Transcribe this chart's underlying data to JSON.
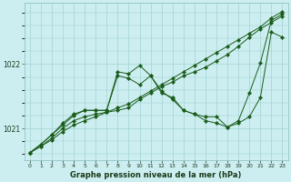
{
  "xlabel": "Graphe pression niveau de la mer (hPa)",
  "bg_color": "#cceef0",
  "grid_color": "#99cccc",
  "line_color": "#1a5c1a",
  "x": [
    0,
    1,
    2,
    3,
    4,
    5,
    6,
    7,
    8,
    9,
    10,
    11,
    12,
    13,
    14,
    15,
    16,
    17,
    18,
    19,
    20,
    21,
    22,
    23
  ],
  "series1": [
    1020.62,
    1020.72,
    1020.82,
    1020.95,
    1021.05,
    1021.12,
    1021.18,
    1021.25,
    1021.32,
    1021.38,
    1021.48,
    1021.58,
    1021.68,
    1021.78,
    1021.88,
    1021.98,
    1022.08,
    1022.18,
    1022.28,
    1022.38,
    1022.48,
    1022.58,
    1022.72,
    1022.82
  ],
  "series2": [
    1020.62,
    1020.72,
    1020.85,
    1021.0,
    1021.12,
    1021.18,
    1021.22,
    1021.25,
    1021.28,
    1021.32,
    1021.45,
    1021.55,
    1021.65,
    1021.72,
    1021.82,
    1021.88,
    1021.95,
    1022.05,
    1022.15,
    1022.28,
    1022.42,
    1022.55,
    1022.65,
    1022.75
  ],
  "series3": [
    1020.62,
    1020.75,
    1020.9,
    1021.08,
    1021.22,
    1021.28,
    1021.28,
    1021.28,
    1021.82,
    1021.78,
    1021.68,
    1021.82,
    1021.58,
    1021.45,
    1021.28,
    1021.22,
    1021.12,
    1021.08,
    1021.02,
    1021.12,
    1021.55,
    1022.02,
    1022.68,
    1022.78
  ],
  "series4": [
    1020.62,
    1020.75,
    1020.9,
    1021.05,
    1021.2,
    1021.28,
    1021.28,
    1021.28,
    1021.88,
    1021.85,
    1021.98,
    1021.82,
    1021.55,
    1021.48,
    1021.28,
    1021.22,
    1021.18,
    1021.18,
    1021.02,
    1021.08,
    1021.18,
    1021.48,
    1022.5,
    1022.42
  ],
  "ylim": [
    1020.5,
    1022.95
  ],
  "yticks": [
    1021.0,
    1022.0
  ],
  "xlim": [
    -0.5,
    23.5
  ],
  "figsize": [
    3.2,
    2.0
  ],
  "dpi": 100
}
